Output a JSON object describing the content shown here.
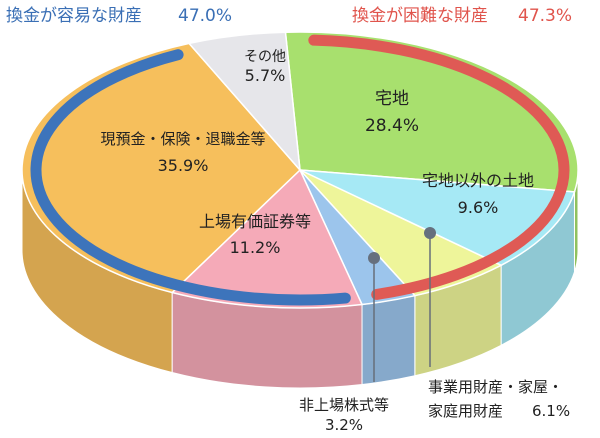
{
  "chart_data": {
    "type": "pie",
    "title": "",
    "groups": [
      {
        "label": "換金が容易な財産",
        "value_text": "47.0%",
        "color": "#3a6fb5",
        "arc_color": "#3d74bb"
      },
      {
        "label": "換金が困難な財産",
        "value_text": "47.3%",
        "color": "#e0544c",
        "arc_color": "#df5a55"
      }
    ],
    "slices": [
      {
        "label": "宅地",
        "value": 28.4,
        "value_text": "28.4%",
        "color": "#a8e06e"
      },
      {
        "label": "宅地以外の土地",
        "value": 9.6,
        "value_text": "9.6%",
        "color": "#a6e9f5"
      },
      {
        "label": "事業用財産・家屋・",
        "label2": "家庭用財産",
        "value": 6.1,
        "value_text": "6.1%",
        "color": "#eef59a"
      },
      {
        "label": "非上場株式等",
        "value": 3.2,
        "value_text": "3.2%",
        "color": "#9cc5ec"
      },
      {
        "label": "上場有価証券等",
        "value": 11.2,
        "value_text": "11.2%",
        "color": "#f5aab8"
      },
      {
        "label": "現預金・保険・退職金等",
        "value": 35.9,
        "value_text": "35.9%",
        "color": "#f6bf5c"
      },
      {
        "label": "その他",
        "value": 5.7,
        "value_text": "5.7%",
        "color": "#e6e6ea"
      }
    ]
  }
}
